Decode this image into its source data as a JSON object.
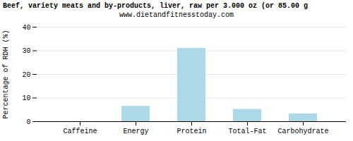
{
  "chart_data": {
    "type": "bar",
    "title": "Beef, variety meats and by-products, liver, raw per 3.000 oz (or 85.00 g",
    "subtitle": "www.dietandfitnesstoday.com",
    "categories": [
      "Caffeine",
      "Energy",
      "Protein",
      "Total-Fat",
      "Carbohydrate"
    ],
    "values": [
      0,
      6.5,
      31.0,
      5.2,
      3.3
    ],
    "color": "#add8e6",
    "ylabel": "Percentage of RDH (%)",
    "ylim": [
      0,
      40
    ],
    "yticks": [
      0,
      10,
      20,
      30,
      40
    ],
    "grid": true
  }
}
